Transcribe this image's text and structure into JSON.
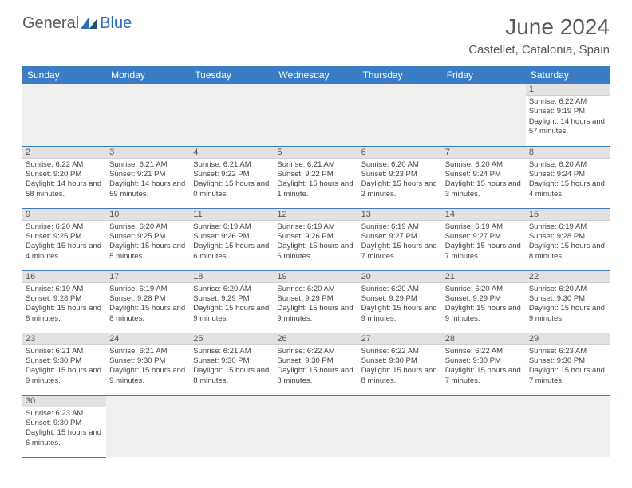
{
  "logo": {
    "part1": "General",
    "part2": "Blue"
  },
  "title": "June 2024",
  "location": "Castellet, Catalonia, Spain",
  "colors": {
    "header_bg": "#3b7dc4",
    "header_text": "#ffffff",
    "daynum_bg": "#e2e2e2",
    "border": "#3b7dc4",
    "title_color": "#5a5a5a",
    "logo_blue": "#2a6db8"
  },
  "day_headers": [
    "Sunday",
    "Monday",
    "Tuesday",
    "Wednesday",
    "Thursday",
    "Friday",
    "Saturday"
  ],
  "weeks": [
    [
      null,
      null,
      null,
      null,
      null,
      null,
      {
        "n": "1",
        "sr": "Sunrise: 6:22 AM",
        "ss": "Sunset: 9:19 PM",
        "dl": "Daylight: 14 hours and 57 minutes."
      }
    ],
    [
      {
        "n": "2",
        "sr": "Sunrise: 6:22 AM",
        "ss": "Sunset: 9:20 PM",
        "dl": "Daylight: 14 hours and 58 minutes."
      },
      {
        "n": "3",
        "sr": "Sunrise: 6:21 AM",
        "ss": "Sunset: 9:21 PM",
        "dl": "Daylight: 14 hours and 59 minutes."
      },
      {
        "n": "4",
        "sr": "Sunrise: 6:21 AM",
        "ss": "Sunset: 9:22 PM",
        "dl": "Daylight: 15 hours and 0 minutes."
      },
      {
        "n": "5",
        "sr": "Sunrise: 6:21 AM",
        "ss": "Sunset: 9:22 PM",
        "dl": "Daylight: 15 hours and 1 minute."
      },
      {
        "n": "6",
        "sr": "Sunrise: 6:20 AM",
        "ss": "Sunset: 9:23 PM",
        "dl": "Daylight: 15 hours and 2 minutes."
      },
      {
        "n": "7",
        "sr": "Sunrise: 6:20 AM",
        "ss": "Sunset: 9:24 PM",
        "dl": "Daylight: 15 hours and 3 minutes."
      },
      {
        "n": "8",
        "sr": "Sunrise: 6:20 AM",
        "ss": "Sunset: 9:24 PM",
        "dl": "Daylight: 15 hours and 4 minutes."
      }
    ],
    [
      {
        "n": "9",
        "sr": "Sunrise: 6:20 AM",
        "ss": "Sunset: 9:25 PM",
        "dl": "Daylight: 15 hours and 4 minutes."
      },
      {
        "n": "10",
        "sr": "Sunrise: 6:20 AM",
        "ss": "Sunset: 9:25 PM",
        "dl": "Daylight: 15 hours and 5 minutes."
      },
      {
        "n": "11",
        "sr": "Sunrise: 6:19 AM",
        "ss": "Sunset: 9:26 PM",
        "dl": "Daylight: 15 hours and 6 minutes."
      },
      {
        "n": "12",
        "sr": "Sunrise: 6:19 AM",
        "ss": "Sunset: 9:26 PM",
        "dl": "Daylight: 15 hours and 6 minutes."
      },
      {
        "n": "13",
        "sr": "Sunrise: 6:19 AM",
        "ss": "Sunset: 9:27 PM",
        "dl": "Daylight: 15 hours and 7 minutes."
      },
      {
        "n": "14",
        "sr": "Sunrise: 6:19 AM",
        "ss": "Sunset: 9:27 PM",
        "dl": "Daylight: 15 hours and 7 minutes."
      },
      {
        "n": "15",
        "sr": "Sunrise: 6:19 AM",
        "ss": "Sunset: 9:28 PM",
        "dl": "Daylight: 15 hours and 8 minutes."
      }
    ],
    [
      {
        "n": "16",
        "sr": "Sunrise: 6:19 AM",
        "ss": "Sunset: 9:28 PM",
        "dl": "Daylight: 15 hours and 8 minutes."
      },
      {
        "n": "17",
        "sr": "Sunrise: 6:19 AM",
        "ss": "Sunset: 9:28 PM",
        "dl": "Daylight: 15 hours and 8 minutes."
      },
      {
        "n": "18",
        "sr": "Sunrise: 6:20 AM",
        "ss": "Sunset: 9:29 PM",
        "dl": "Daylight: 15 hours and 9 minutes."
      },
      {
        "n": "19",
        "sr": "Sunrise: 6:20 AM",
        "ss": "Sunset: 9:29 PM",
        "dl": "Daylight: 15 hours and 9 minutes."
      },
      {
        "n": "20",
        "sr": "Sunrise: 6:20 AM",
        "ss": "Sunset: 9:29 PM",
        "dl": "Daylight: 15 hours and 9 minutes."
      },
      {
        "n": "21",
        "sr": "Sunrise: 6:20 AM",
        "ss": "Sunset: 9:29 PM",
        "dl": "Daylight: 15 hours and 9 minutes."
      },
      {
        "n": "22",
        "sr": "Sunrise: 6:20 AM",
        "ss": "Sunset: 9:30 PM",
        "dl": "Daylight: 15 hours and 9 minutes."
      }
    ],
    [
      {
        "n": "23",
        "sr": "Sunrise: 6:21 AM",
        "ss": "Sunset: 9:30 PM",
        "dl": "Daylight: 15 hours and 9 minutes."
      },
      {
        "n": "24",
        "sr": "Sunrise: 6:21 AM",
        "ss": "Sunset: 9:30 PM",
        "dl": "Daylight: 15 hours and 9 minutes."
      },
      {
        "n": "25",
        "sr": "Sunrise: 6:21 AM",
        "ss": "Sunset: 9:30 PM",
        "dl": "Daylight: 15 hours and 8 minutes."
      },
      {
        "n": "26",
        "sr": "Sunrise: 6:22 AM",
        "ss": "Sunset: 9:30 PM",
        "dl": "Daylight: 15 hours and 8 minutes."
      },
      {
        "n": "27",
        "sr": "Sunrise: 6:22 AM",
        "ss": "Sunset: 9:30 PM",
        "dl": "Daylight: 15 hours and 8 minutes."
      },
      {
        "n": "28",
        "sr": "Sunrise: 6:22 AM",
        "ss": "Sunset: 9:30 PM",
        "dl": "Daylight: 15 hours and 7 minutes."
      },
      {
        "n": "29",
        "sr": "Sunrise: 6:23 AM",
        "ss": "Sunset: 9:30 PM",
        "dl": "Daylight: 15 hours and 7 minutes."
      }
    ],
    [
      {
        "n": "30",
        "sr": "Sunrise: 6:23 AM",
        "ss": "Sunset: 9:30 PM",
        "dl": "Daylight: 15 hours and 6 minutes."
      },
      null,
      null,
      null,
      null,
      null,
      null
    ]
  ]
}
